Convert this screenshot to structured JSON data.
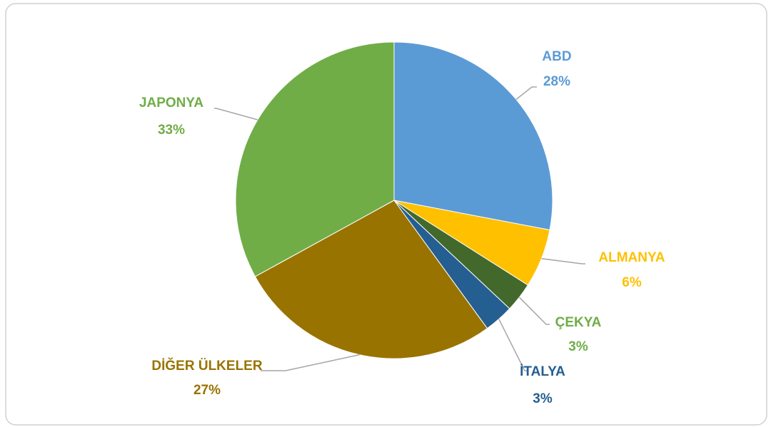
{
  "chart_data": {
    "type": "pie",
    "categories": [
      "ABD",
      "ALMANYA",
      "ÇEKYA",
      "İTALYA",
      "DİĞER ÜLKELER",
      "JAPONYA"
    ],
    "values": [
      28,
      6,
      3,
      3,
      27,
      33
    ],
    "value_labels": [
      "28%",
      "6%",
      "3%",
      "3%",
      "27%",
      "33%"
    ],
    "colors": [
      "#5b9bd5",
      "#ffc000",
      "#43682b",
      "#255e91",
      "#997300",
      "#70ad47"
    ],
    "label_colors": [
      "#5b9bd5",
      "#ffc000",
      "#70ad47",
      "#255e91",
      "#997300",
      "#70ad47"
    ]
  }
}
